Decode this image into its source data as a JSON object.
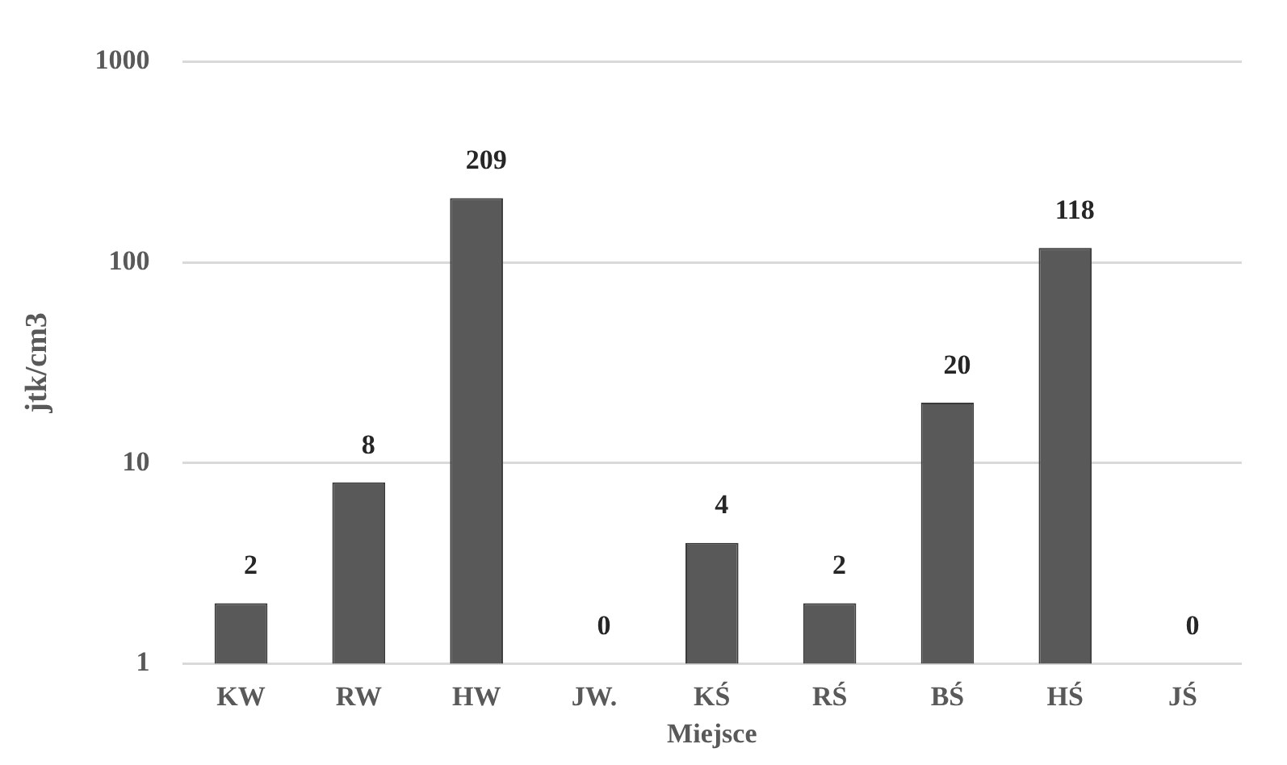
{
  "chart_data": {
    "type": "bar",
    "xlabel": "Miejsce",
    "ylabel": "jtk/cm3",
    "categories": [
      "KW",
      "RW",
      "HW",
      "JW.",
      "KŚ",
      "RŚ",
      "BŚ",
      "HŚ",
      "JŚ"
    ],
    "values": [
      2,
      8,
      209,
      null,
      4,
      2,
      20,
      118,
      null
    ],
    "value_labels": [
      "2",
      "8",
      "209",
      "0",
      "4",
      "2",
      "20",
      "118",
      "0"
    ],
    "color": "#595959",
    "log": true,
    "ylim": [
      1,
      1000
    ],
    "yticks": [
      1,
      10,
      100,
      1000
    ],
    "grid": "y",
    "legend": false
  }
}
